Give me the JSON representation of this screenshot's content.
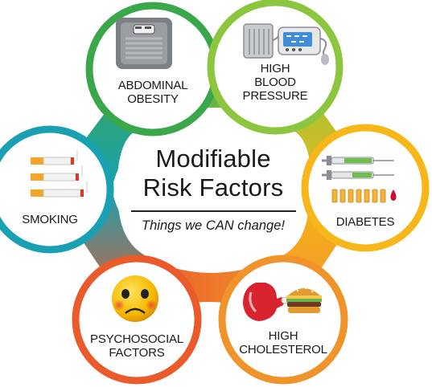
{
  "center": {
    "title_line1": "Modifiable",
    "title_line2": "Risk Factors",
    "subtitle": "Things we CAN change!"
  },
  "factors": [
    {
      "lines": [
        "ABDOMINAL",
        "OBESITY"
      ],
      "icon": "bathroom-scale-icon",
      "ring_color": "#3aa84a"
    },
    {
      "lines": [
        "HIGH",
        "BLOOD",
        "PRESSURE"
      ],
      "icon": "blood-pressure-monitor-icon",
      "ring_color": "#8cc63f"
    },
    {
      "lines": [
        "DIABETES"
      ],
      "icon": "syringes-and-vials-icon",
      "ring_color": "#f7b619"
    },
    {
      "lines": [
        "HIGH",
        "CHOLESTEROL"
      ],
      "icon": "meat-and-burger-icon",
      "ring_color": "#f0932b"
    },
    {
      "lines": [
        "PSYCHOSOCIAL",
        "FACTORS"
      ],
      "icon": "sad-face-icon",
      "ring_color": "#ea5a2a"
    },
    {
      "lines": [
        "SMOKING"
      ],
      "icon": "cigarettes-icon",
      "ring_color": "#1aa0b3"
    }
  ]
}
